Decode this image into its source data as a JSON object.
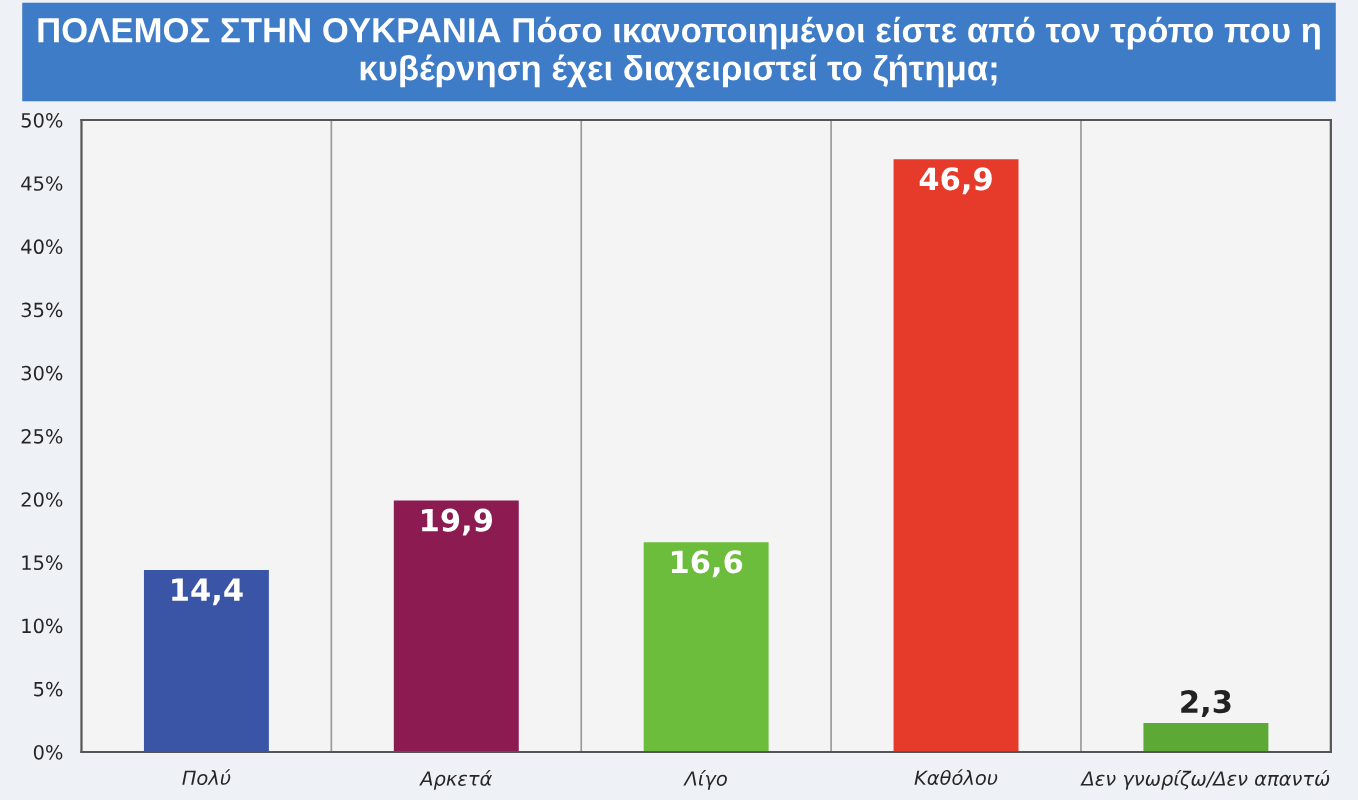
{
  "chart_data": {
    "type": "bar",
    "title": "ΠΟΛΕΜΟΣ ΣΤΗΝ ΟΥΚΡΑΝΙΑ Πόσο ικανοποιημένοι είστε από τον τρόπο που η κυβέρνηση έχει διαχειριστεί το ζήτημα;",
    "categories": [
      "Πολύ",
      "Αρκετά",
      "Λίγο",
      "Καθόλου",
      "Δεν γνωρίζω/Δεν απαντώ"
    ],
    "values": [
      14.4,
      19.9,
      16.6,
      46.9,
      2.3
    ],
    "value_labels": [
      "14,4",
      "19,9",
      "16,6",
      "46,9",
      "2,3"
    ],
    "colors": [
      "#3b55a6",
      "#8c1b52",
      "#6cbd3c",
      "#e63a2b",
      "#5caa35"
    ],
    "ylim": [
      0,
      50
    ],
    "yticks": [
      {
        "value": 0,
        "label": "0%"
      },
      {
        "value": 5,
        "label": "5%"
      },
      {
        "value": 10,
        "label": "10%"
      },
      {
        "value": 15,
        "label": "15%"
      },
      {
        "value": 20,
        "label": "20%"
      },
      {
        "value": 25,
        "label": "25%"
      },
      {
        "value": 30,
        "label": "30%"
      },
      {
        "value": 35,
        "label": "35%"
      },
      {
        "value": 40,
        "label": "40%"
      },
      {
        "value": 45,
        "label": "45%"
      },
      {
        "value": 50,
        "label": "50%"
      }
    ],
    "grid": false
  }
}
